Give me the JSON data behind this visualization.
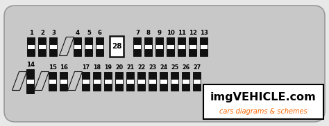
{
  "bg_color": "#c8c8c8",
  "outer_bg": "#e8e8e8",
  "fuse_fill": "#ffffff",
  "fuse_border": "#111111",
  "text_color": "#000000",
  "fig_width": 4.74,
  "fig_height": 1.82,
  "watermark_text1": "imgVEHICLE.com",
  "watermark_text2": "cars diagrams & schemes",
  "watermark_color1": "#000000",
  "watermark_color2": "#ff6600",
  "row1_fuses_a": [
    1,
    2,
    3
  ],
  "row1_fuses_b": [
    4,
    5,
    6
  ],
  "row1_fuses_c": [
    7,
    8,
    9,
    10,
    11,
    12,
    13
  ],
  "row1_large_fuse": 28,
  "row2_fuses_a": [
    14
  ],
  "row2_fuses_b": [
    15,
    16
  ],
  "row2_fuses_c": [
    17,
    18,
    19,
    20,
    21,
    22,
    23,
    24,
    25,
    26,
    27
  ]
}
